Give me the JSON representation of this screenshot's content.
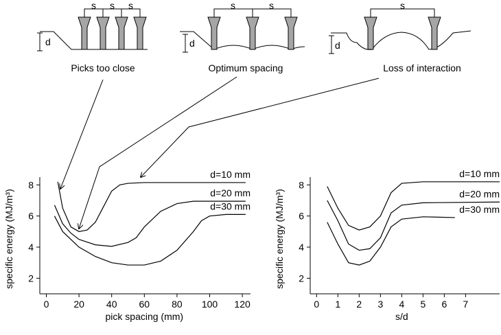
{
  "schematics": [
    {
      "label": "Picks too close",
      "spacing_label": "s",
      "depth_label": "d"
    },
    {
      "label": "Optimum spacing",
      "spacing_label": "s",
      "depth_label": "d"
    },
    {
      "label": "Loss of interaction",
      "spacing_label": "s",
      "depth_label": "d"
    }
  ],
  "chart_data": [
    {
      "type": "line",
      "x_label": "pick spacing (mm)",
      "y_label": "specific energy (MJ/m³)",
      "xlim": [
        -4,
        125
      ],
      "ylim": [
        1,
        8.5
      ],
      "xticks": [
        0,
        20,
        40,
        60,
        80,
        100,
        120
      ],
      "yticks": [
        2,
        4,
        6,
        8
      ],
      "series": [
        {
          "name": "d=10 mm",
          "color": "#000000",
          "x": [
            7,
            10,
            15,
            20,
            25,
            30,
            35,
            40,
            45,
            50,
            60,
            122
          ],
          "values": [
            8.2,
            6.5,
            5.3,
            5.0,
            5.1,
            5.6,
            6.6,
            7.6,
            8.0,
            8.1,
            8.15,
            8.15
          ]
        },
        {
          "name": "d=20 mm",
          "color": "#000000",
          "x": [
            5,
            10,
            15,
            20,
            30,
            40,
            50,
            55,
            60,
            70,
            80,
            90,
            122
          ],
          "values": [
            6.7,
            5.5,
            4.9,
            4.5,
            4.15,
            4.05,
            4.3,
            4.6,
            5.3,
            6.3,
            6.8,
            6.95,
            6.95
          ]
        },
        {
          "name": "d=30 mm",
          "color": "#000000",
          "x": [
            5,
            10,
            20,
            30,
            40,
            50,
            60,
            70,
            80,
            90,
            95,
            100,
            110,
            122
          ],
          "values": [
            6.0,
            5.0,
            4.0,
            3.4,
            3.0,
            2.85,
            2.85,
            3.1,
            3.8,
            5.0,
            5.7,
            6.0,
            6.1,
            6.1
          ]
        }
      ]
    },
    {
      "type": "line",
      "x_label": "s/d",
      "y_label": "specific energy (MJ/m³)",
      "xlim": [
        -0.3,
        8.6
      ],
      "ylim": [
        1,
        8.5
      ],
      "xticks": [
        0,
        1,
        2,
        3,
        4,
        5,
        6,
        7
      ],
      "yticks": [
        2,
        4,
        6,
        8
      ],
      "series": [
        {
          "name": "d=10 mm",
          "color": "#000000",
          "x": [
            0.5,
            1,
            1.5,
            2,
            2.5,
            3,
            3.5,
            4,
            5,
            8.6
          ],
          "values": [
            7.9,
            6.5,
            5.4,
            5.1,
            5.3,
            6.0,
            7.5,
            8.1,
            8.2,
            8.2
          ]
        },
        {
          "name": "d=20 mm",
          "color": "#000000",
          "x": [
            0.5,
            1,
            1.5,
            2,
            2.5,
            3,
            3.5,
            4,
            5,
            8.6
          ],
          "values": [
            7.0,
            5.7,
            4.2,
            3.8,
            3.9,
            4.6,
            6.2,
            6.7,
            6.85,
            6.9
          ]
        },
        {
          "name": "d=30 mm",
          "color": "#000000",
          "x": [
            0.5,
            1,
            1.5,
            2,
            2.5,
            3,
            3.5,
            4,
            5,
            6.5
          ],
          "values": [
            5.6,
            4.2,
            3.0,
            2.85,
            3.1,
            4.0,
            5.3,
            5.8,
            5.95,
            5.9
          ]
        }
      ]
    }
  ]
}
